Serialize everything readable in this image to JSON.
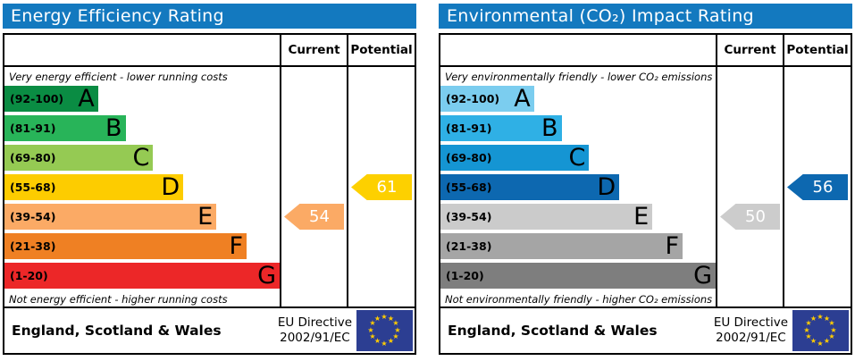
{
  "eu_flag": {
    "bg": "#2c3e92",
    "star_color": "#ffcc00"
  },
  "panels": [
    {
      "id": "energy-efficiency-rating",
      "title": "Energy Efficiency Rating",
      "title_bg": "#1379bf",
      "columns": {
        "current": "Current",
        "potential": "Potential"
      },
      "top_caption": "Very energy efficient - lower running costs",
      "bottom_caption": "Not energy efficient - higher running costs",
      "bands": [
        {
          "range": "(92-100)",
          "letter": "A",
          "color": "#0a8c43",
          "width_pct": 34
        },
        {
          "range": "(81-91)",
          "letter": "B",
          "color": "#28b459",
          "width_pct": 44
        },
        {
          "range": "(69-80)",
          "letter": "C",
          "color": "#95ca53",
          "width_pct": 54
        },
        {
          "range": "(55-68)",
          "letter": "D",
          "color": "#fdcc00",
          "width_pct": 65
        },
        {
          "range": "(39-54)",
          "letter": "E",
          "color": "#fbaa65",
          "width_pct": 77
        },
        {
          "range": "(21-38)",
          "letter": "F",
          "color": "#ef8023",
          "width_pct": 88
        },
        {
          "range": "(1-20)",
          "letter": "G",
          "color": "#ec2728",
          "width_pct": 100
        }
      ],
      "current": {
        "value": "54",
        "band_index": 4,
        "color": "#fbaa65"
      },
      "potential": {
        "value": "61",
        "band_index": 3,
        "color": "#fdd000"
      },
      "footer": {
        "region": "England, Scotland & Wales",
        "directive": [
          "EU Directive",
          "2002/91/EC"
        ]
      }
    },
    {
      "id": "environmental-co2-impact-rating",
      "title": "Environmental (CO₂) Impact Rating",
      "title_bg": "#1379bf",
      "columns": {
        "current": "Current",
        "potential": "Potential"
      },
      "top_caption": "Very environmentally friendly - lower CO₂ emissions",
      "bottom_caption": "Not environmentally friendly - higher CO₂ emissions",
      "bands": [
        {
          "range": "(92-100)",
          "letter": "A",
          "color": "#7bcdef",
          "width_pct": 34
        },
        {
          "range": "(81-91)",
          "letter": "B",
          "color": "#2fb0e5",
          "width_pct": 44
        },
        {
          "range": "(69-80)",
          "letter": "C",
          "color": "#1595d3",
          "width_pct": 54
        },
        {
          "range": "(55-68)",
          "letter": "D",
          "color": "#0d68b0",
          "width_pct": 65
        },
        {
          "range": "(39-54)",
          "letter": "E",
          "color": "#cbcbcb",
          "width_pct": 77
        },
        {
          "range": "(21-38)",
          "letter": "F",
          "color": "#a5a5a5",
          "width_pct": 88
        },
        {
          "range": "(1-20)",
          "letter": "G",
          "color": "#7e7e7e",
          "width_pct": 100
        }
      ],
      "current": {
        "value": "50",
        "band_index": 4,
        "color": "#cccccc"
      },
      "potential": {
        "value": "56",
        "band_index": 3,
        "color": "#0d68b0"
      },
      "footer": {
        "region": "England, Scotland & Wales",
        "directive": [
          "EU Directive",
          "2002/91/EC"
        ]
      }
    }
  ],
  "chart_data": [
    {
      "type": "bar",
      "orientation": "horizontal",
      "title": "Energy Efficiency Rating",
      "subtitle_top": "Very energy efficient - lower running costs",
      "subtitle_bottom": "Not energy efficient - higher running costs",
      "categories": [
        "A",
        "B",
        "C",
        "D",
        "E",
        "F",
        "G"
      ],
      "band_ranges": [
        "92-100",
        "81-91",
        "69-80",
        "55-68",
        "39-54",
        "21-38",
        "1-20"
      ],
      "bar_lengths_pct": [
        34,
        44,
        54,
        65,
        77,
        88,
        100
      ],
      "series": [
        {
          "name": "Current",
          "value": 54,
          "band": "E"
        },
        {
          "name": "Potential",
          "value": 61,
          "band": "D"
        }
      ],
      "footer": "England, Scotland & Wales",
      "directive": "EU Directive 2002/91/EC"
    },
    {
      "type": "bar",
      "orientation": "horizontal",
      "title": "Environmental (CO₂) Impact Rating",
      "subtitle_top": "Very environmentally friendly - lower CO₂ emissions",
      "subtitle_bottom": "Not environmentally friendly - higher CO₂ emissions",
      "categories": [
        "A",
        "B",
        "C",
        "D",
        "E",
        "F",
        "G"
      ],
      "band_ranges": [
        "92-100",
        "81-91",
        "69-80",
        "55-68",
        "39-54",
        "21-38",
        "1-20"
      ],
      "bar_lengths_pct": [
        34,
        44,
        54,
        65,
        77,
        88,
        100
      ],
      "series": [
        {
          "name": "Current",
          "value": 50,
          "band": "E"
        },
        {
          "name": "Potential",
          "value": 56,
          "band": "D"
        }
      ],
      "footer": "England, Scotland & Wales",
      "directive": "EU Directive 2002/91/EC"
    }
  ]
}
